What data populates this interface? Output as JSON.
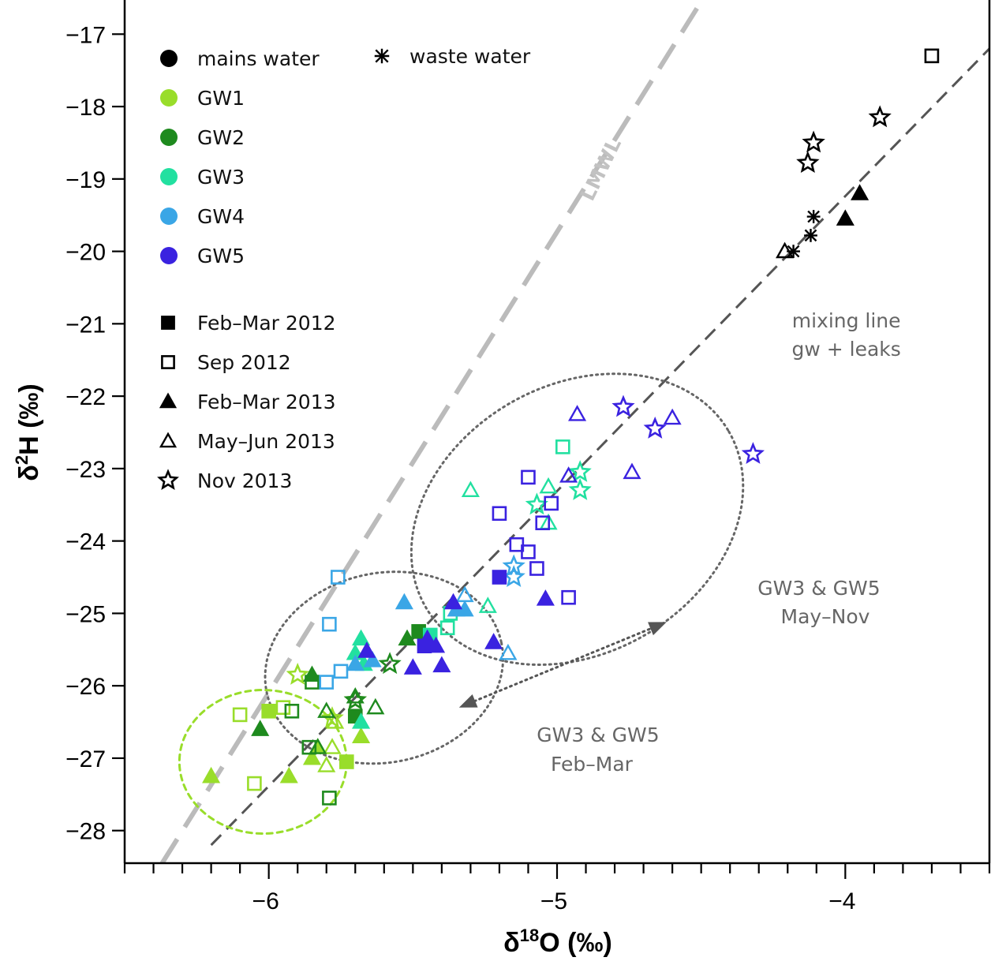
{
  "chart_data": {
    "type": "scatter",
    "xlabel": "δ18O (‰)",
    "ylabel": "δ2H (‰)",
    "xlim": [
      -6.5,
      -3.5
    ],
    "ylim": [
      -28.45,
      -16.55
    ],
    "xticks": [
      -6,
      -5,
      -4
    ],
    "yticks": [
      -28,
      -27,
      -26,
      -25,
      -24,
      -23,
      -22,
      -21,
      -20,
      -19,
      -18,
      -17
    ],
    "grid": false,
    "colors": {
      "mains water": "#000000",
      "waste water": "#000000",
      "GW1": "#99dd2a",
      "GW2": "#1e8a1e",
      "GW3": "#22e0a0",
      "GW4": "#3aa6e6",
      "GW5": "#3a22e0"
    },
    "legend": {
      "placement": "top-left",
      "sources": [
        {
          "label": "mains water",
          "key": "mains water",
          "marker": "circle"
        },
        {
          "label": "waste water",
          "key": "waste water",
          "marker": "cross"
        },
        {
          "label": "GW1",
          "key": "GW1",
          "marker": "circle"
        },
        {
          "label": "GW2",
          "key": "GW2",
          "marker": "circle"
        },
        {
          "label": "GW3",
          "key": "GW3",
          "marker": "circle"
        },
        {
          "label": "GW4",
          "key": "GW4",
          "marker": "circle"
        },
        {
          "label": "GW5",
          "key": "GW5",
          "marker": "circle"
        }
      ],
      "periods": [
        {
          "label": "Feb–Mar 2012",
          "marker": "square",
          "filled": true
        },
        {
          "label": "Sep 2012",
          "marker": "square",
          "filled": false
        },
        {
          "label": "Feb–Mar 2013",
          "marker": "triangle",
          "filled": true
        },
        {
          "label": "May–Jun 2013",
          "marker": "triangle",
          "filled": false
        },
        {
          "label": "Nov 2013",
          "marker": "star",
          "filled": false
        }
      ]
    },
    "lines": [
      {
        "name": "LMWL",
        "style": "long-dash",
        "color": "#bbbbbb",
        "x": [
          -6.37,
          -4.5
        ],
        "y": [
          -28.45,
          -16.55
        ]
      },
      {
        "name": "mixing line",
        "style": "dash",
        "color": "#555555",
        "x": [
          -6.2,
          -3.5
        ],
        "y": [
          -28.2,
          -17.2
        ]
      }
    ],
    "ellipses": [
      {
        "label": "GW3 & GW5 Feb-Mar",
        "color": "#666666",
        "cx": -5.6,
        "cy": -25.75,
        "rx": 0.43,
        "ry": 1.35,
        "angle": 18
      },
      {
        "label": "GW3 & GW5 May-Nov",
        "color": "#666666",
        "cx": -4.93,
        "cy": -23.7,
        "rx": 0.49,
        "ry": 1.82,
        "angle": 40
      },
      {
        "label": "GW1",
        "color": "#99dd2a",
        "cx": -6.02,
        "cy": -27.05,
        "rx": 0.3,
        "ry": 0.97,
        "angle": 0
      }
    ],
    "annotations": {
      "lmwl": "LMWL",
      "mixing_line": [
        "mixing line",
        "gw + leaks"
      ],
      "may_nov": [
        "GW3 & GW5",
        "May–Nov"
      ],
      "feb_mar": [
        "GW3 & GW5",
        "Feb–Mar"
      ]
    },
    "arrow": {
      "from": [
        -5.34,
        -26.3
      ],
      "to": [
        -4.62,
        -25.12
      ]
    },
    "series": [
      {
        "source": "mains water",
        "marker": "square",
        "filled": false,
        "points": [
          [
            -3.7,
            -17.3
          ]
        ]
      },
      {
        "source": "mains water",
        "marker": "star",
        "filled": false,
        "points": [
          [
            -3.88,
            -18.15
          ],
          [
            -4.11,
            -18.5
          ],
          [
            -4.13,
            -18.78
          ]
        ]
      },
      {
        "source": "mains water",
        "marker": "triangle",
        "filled": true,
        "points": [
          [
            -3.95,
            -19.2
          ],
          [
            -4.0,
            -19.55
          ]
        ]
      },
      {
        "source": "mains water",
        "marker": "triangle",
        "filled": false,
        "points": [
          [
            -4.21,
            -20.0
          ]
        ]
      },
      {
        "source": "waste water",
        "marker": "cross",
        "filled": false,
        "points": [
          [
            -4.11,
            -19.52
          ],
          [
            -4.12,
            -19.78
          ],
          [
            -4.18,
            -20.0
          ]
        ]
      },
      {
        "source": "GW1",
        "marker": "square",
        "filled": true,
        "points": [
          [
            -6.0,
            -26.35
          ],
          [
            -5.73,
            -27.05
          ]
        ]
      },
      {
        "source": "GW1",
        "marker": "square",
        "filled": false,
        "points": [
          [
            -6.1,
            -26.4
          ],
          [
            -5.95,
            -26.3
          ],
          [
            -6.05,
            -27.35
          ]
        ]
      },
      {
        "source": "GW1",
        "marker": "triangle",
        "filled": true,
        "points": [
          [
            -6.2,
            -27.25
          ],
          [
            -5.93,
            -27.25
          ],
          [
            -5.85,
            -27.0
          ],
          [
            -5.68,
            -26.7
          ],
          [
            -5.83,
            -26.85
          ]
        ]
      },
      {
        "source": "GW1",
        "marker": "triangle",
        "filled": false,
        "points": [
          [
            -5.78,
            -26.85
          ],
          [
            -5.8,
            -27.1
          ],
          [
            -5.77,
            -26.5
          ]
        ]
      },
      {
        "source": "GW1",
        "marker": "star",
        "filled": false,
        "points": [
          [
            -5.9,
            -25.85
          ],
          [
            -5.78,
            -26.45
          ],
          [
            -5.7,
            -26.2
          ]
        ]
      },
      {
        "source": "GW2",
        "marker": "square",
        "filled": true,
        "points": [
          [
            -5.7,
            -26.42
          ],
          [
            -5.48,
            -25.25
          ]
        ]
      },
      {
        "source": "GW2",
        "marker": "square",
        "filled": false,
        "points": [
          [
            -5.85,
            -25.95
          ],
          [
            -5.92,
            -26.35
          ],
          [
            -5.86,
            -26.85
          ],
          [
            -5.79,
            -27.55
          ]
        ]
      },
      {
        "source": "GW2",
        "marker": "triangle",
        "filled": true,
        "points": [
          [
            -6.03,
            -26.6
          ],
          [
            -5.52,
            -25.35
          ],
          [
            -5.85,
            -25.85
          ]
        ]
      },
      {
        "source": "GW2",
        "marker": "triangle",
        "filled": false,
        "points": [
          [
            -5.8,
            -26.35
          ],
          [
            -5.83,
            -26.85
          ],
          [
            -5.63,
            -26.3
          ],
          [
            -5.7,
            -26.15
          ]
        ]
      },
      {
        "source": "GW2",
        "marker": "star",
        "filled": false,
        "points": [
          [
            -5.58,
            -25.7
          ],
          [
            -5.7,
            -26.2
          ]
        ]
      },
      {
        "source": "GW3",
        "marker": "square",
        "filled": true,
        "points": [
          [
            -5.44,
            -25.3
          ]
        ]
      },
      {
        "source": "GW3",
        "marker": "square",
        "filled": false,
        "points": [
          [
            -5.37,
            -25.0
          ],
          [
            -5.38,
            -25.2
          ],
          [
            -4.98,
            -22.7
          ]
        ]
      },
      {
        "source": "GW3",
        "marker": "triangle",
        "filled": true,
        "points": [
          [
            -5.68,
            -25.35
          ],
          [
            -5.7,
            -25.55
          ],
          [
            -5.67,
            -25.7
          ],
          [
            -5.68,
            -26.5
          ]
        ]
      },
      {
        "source": "GW3",
        "marker": "triangle",
        "filled": false,
        "points": [
          [
            -5.24,
            -24.9
          ],
          [
            -5.3,
            -23.3
          ],
          [
            -5.03,
            -23.75
          ],
          [
            -5.03,
            -23.25
          ]
        ]
      },
      {
        "source": "GW3",
        "marker": "star",
        "filled": false,
        "points": [
          [
            -5.07,
            -23.5
          ],
          [
            -4.92,
            -23.05
          ],
          [
            -4.92,
            -23.3
          ]
        ]
      },
      {
        "source": "GW4",
        "marker": "square",
        "filled": false,
        "points": [
          [
            -5.76,
            -24.5
          ],
          [
            -5.79,
            -25.15
          ],
          [
            -5.75,
            -25.8
          ],
          [
            -5.8,
            -25.95
          ]
        ]
      },
      {
        "source": "GW4",
        "marker": "triangle",
        "filled": true,
        "points": [
          [
            -5.53,
            -24.85
          ],
          [
            -5.35,
            -24.95
          ],
          [
            -5.7,
            -25.7
          ],
          [
            -5.64,
            -25.65
          ],
          [
            -5.32,
            -24.95
          ]
        ]
      },
      {
        "source": "GW4",
        "marker": "triangle",
        "filled": false,
        "points": [
          [
            -5.32,
            -24.75
          ],
          [
            -5.17,
            -25.55
          ]
        ]
      },
      {
        "source": "GW4",
        "marker": "star",
        "filled": false,
        "points": [
          [
            -5.15,
            -24.35
          ],
          [
            -5.15,
            -24.5
          ]
        ]
      },
      {
        "source": "GW5",
        "marker": "square",
        "filled": true,
        "points": [
          [
            -5.2,
            -24.5
          ],
          [
            -5.46,
            -25.45
          ]
        ]
      },
      {
        "source": "GW5",
        "marker": "square",
        "filled": false,
        "points": [
          [
            -5.2,
            -23.62
          ],
          [
            -5.1,
            -23.12
          ],
          [
            -5.14,
            -24.05
          ],
          [
            -5.1,
            -24.15
          ],
          [
            -5.07,
            -24.38
          ],
          [
            -5.05,
            -23.75
          ],
          [
            -5.02,
            -23.48
          ],
          [
            -4.96,
            -24.78
          ]
        ]
      },
      {
        "source": "GW5",
        "marker": "triangle",
        "filled": true,
        "points": [
          [
            -5.36,
            -24.85
          ],
          [
            -5.45,
            -25.35
          ],
          [
            -5.42,
            -25.45
          ],
          [
            -5.5,
            -25.75
          ],
          [
            -5.4,
            -25.72
          ],
          [
            -5.22,
            -25.4
          ],
          [
            -5.04,
            -24.8
          ],
          [
            -5.66,
            -25.52
          ]
        ]
      },
      {
        "source": "GW5",
        "marker": "triangle",
        "filled": false,
        "points": [
          [
            -4.93,
            -22.25
          ],
          [
            -4.96,
            -23.1
          ],
          [
            -4.74,
            -23.05
          ],
          [
            -4.6,
            -22.3
          ]
        ]
      },
      {
        "source": "GW5",
        "marker": "star",
        "filled": false,
        "points": [
          [
            -4.77,
            -22.15
          ],
          [
            -4.66,
            -22.45
          ],
          [
            -4.32,
            -22.8
          ]
        ]
      }
    ]
  }
}
